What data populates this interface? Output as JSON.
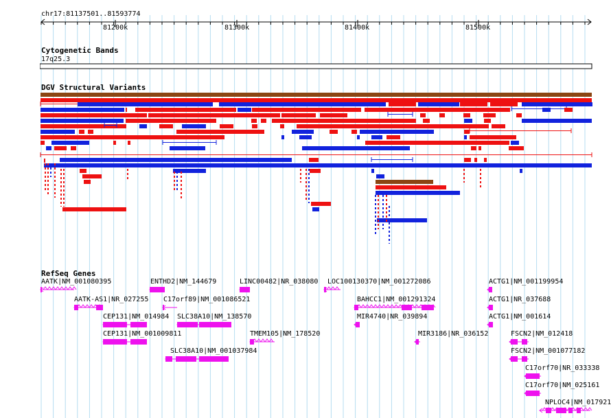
{
  "ruler": {
    "locus": "chr17:81137501..81593774",
    "ticks": [
      "81200k",
      "81300k",
      "81400k",
      "81500k"
    ]
  },
  "tracks": {
    "cytoband": {
      "title": "Cytogenetic Bands",
      "band": "17q25.3"
    },
    "dgv": {
      "title": "DGV Structural Variants"
    },
    "refseq": {
      "title": "RefSeq Genes",
      "genes": [
        "AATK|NM_001080395",
        "ENTHD2|NM_144679",
        "LINC00482|NR_038080",
        "LOC100130370|NM_001272086",
        "ACTG1|NM_001199954",
        "AATK-AS1|NR_027255",
        "C17orf89|NM_001086521",
        "BAHCC1|NM_001291324",
        "ACTG1|NR_037688",
        "CEP131|NM_014984",
        "SLC38A10|NM_138570",
        "MIR4740|NR_039894",
        "ACTG1|NM_001614",
        "CEP131|NM_001009811",
        "TMEM105|NM_178520",
        "MIR3186|NR_036152",
        "FSCN2|NM_012418",
        "SLC38A10|NM_001037984",
        "FSCN2|NM_001077182",
        "C17orf70|NR_033338",
        "C17orf70|NM_025161",
        "NPLOC4|NM_017921"
      ]
    }
  },
  "colors": {
    "gain": "#ee1111",
    "loss": "#1122dd",
    "inversion": "#8b4513",
    "gene": "#ee11ee",
    "grid": "#b4dcf0"
  }
}
